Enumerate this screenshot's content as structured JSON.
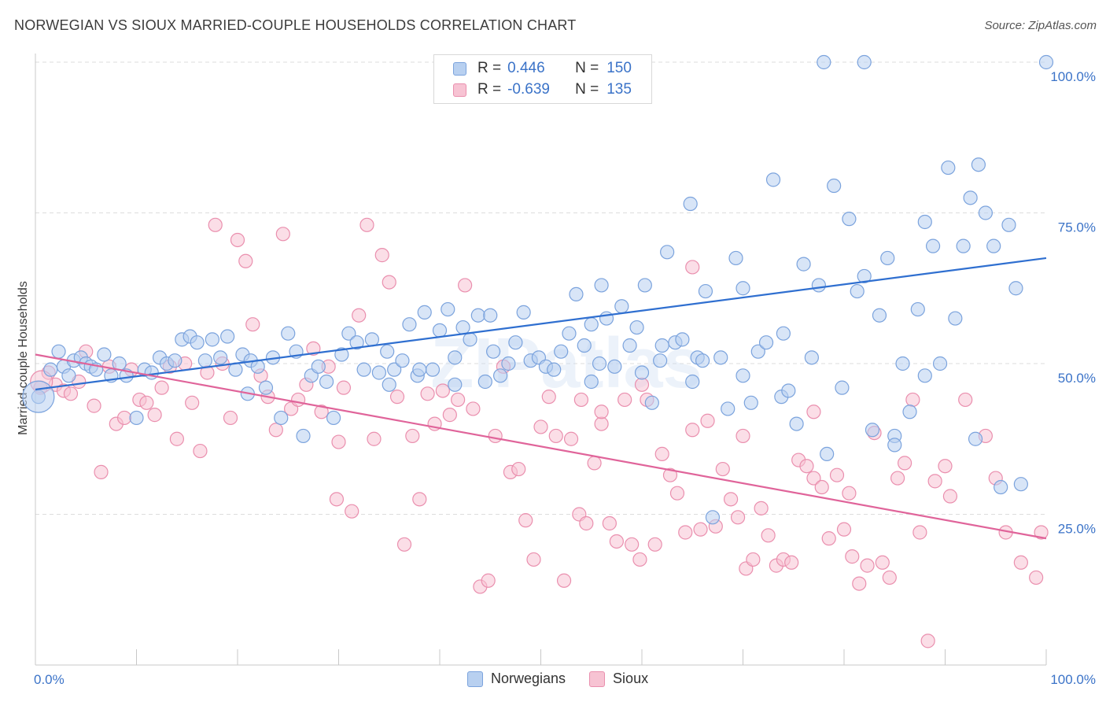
{
  "title": "NORWEGIAN VS SIOUX MARRIED-COUPLE HOUSEHOLDS CORRELATION CHART",
  "source": "Source: ZipAtlas.com",
  "watermark": "ZIPatlas",
  "legend": {
    "rows": [
      {
        "r_label": "R =",
        "r_value": "0.446",
        "n_label": "N =",
        "n_value": "150"
      },
      {
        "r_label": "R =",
        "r_value": "-0.639",
        "n_label": "N =",
        "n_value": "135"
      }
    ]
  },
  "bottom_legend": [
    "Norwegians",
    "Sioux"
  ],
  "colors": {
    "norwegian_fill": "#b8d0f0",
    "norwegian_stroke": "#7ba3dd",
    "norwegian_line": "#2f6fd0",
    "sioux_fill": "#f7c3d3",
    "sioux_stroke": "#ea8fae",
    "sioux_line": "#e0649a",
    "tick_label": "#3b73c8",
    "grid": "#dddddd"
  },
  "chart_data": {
    "type": "scatter",
    "title": "NORWEGIAN VS SIOUX MARRIED-COUPLE HOUSEHOLDS CORRELATION CHART",
    "xlabel": "",
    "ylabel": "Married-couple Households",
    "xlim": [
      0,
      100
    ],
    "ylim": [
      0,
      100
    ],
    "x_tick_labels": [
      "0.0%",
      "100.0%"
    ],
    "y_tick_labels": [
      "25.0%",
      "50.0%",
      "75.0%",
      "100.0%"
    ],
    "y_ticks": [
      25,
      50,
      75,
      100
    ],
    "grid": true,
    "legend_position": "top-center",
    "series": [
      {
        "name": "Norwegians",
        "R": 0.446,
        "N": 150,
        "trend": {
          "x": [
            0,
            100
          ],
          "y": [
            45.7,
            67.5
          ]
        },
        "points": [
          [
            0.3,
            44.5
          ],
          [
            1.5,
            49.0
          ],
          [
            2.3,
            52.0
          ],
          [
            2.8,
            49.5
          ],
          [
            3.3,
            48.0
          ],
          [
            3.8,
            50.5
          ],
          [
            4.5,
            51.0
          ],
          [
            5.0,
            50.0
          ],
          [
            5.5,
            49.5
          ],
          [
            6.0,
            49.0
          ],
          [
            6.8,
            51.5
          ],
          [
            7.5,
            48.0
          ],
          [
            8.3,
            50.0
          ],
          [
            9.0,
            48.0
          ],
          [
            10.0,
            41.0
          ],
          [
            10.8,
            49.0
          ],
          [
            11.5,
            48.5
          ],
          [
            12.3,
            51.0
          ],
          [
            13.0,
            50.0
          ],
          [
            13.8,
            50.5
          ],
          [
            14.5,
            54.0
          ],
          [
            15.3,
            54.5
          ],
          [
            16.0,
            53.5
          ],
          [
            16.8,
            50.5
          ],
          [
            17.5,
            54.0
          ],
          [
            18.3,
            51.0
          ],
          [
            19.0,
            54.5
          ],
          [
            19.8,
            49.0
          ],
          [
            20.5,
            51.5
          ],
          [
            21.3,
            50.5
          ],
          [
            22.0,
            49.5
          ],
          [
            22.8,
            46.0
          ],
          [
            23.5,
            51.0
          ],
          [
            24.3,
            41.0
          ],
          [
            25.0,
            55.0
          ],
          [
            25.8,
            52.0
          ],
          [
            26.5,
            38.0
          ],
          [
            27.3,
            48.0
          ],
          [
            28.0,
            49.5
          ],
          [
            28.8,
            47.0
          ],
          [
            29.5,
            41.0
          ],
          [
            30.3,
            51.5
          ],
          [
            31.0,
            55.0
          ],
          [
            31.8,
            53.5
          ],
          [
            32.5,
            49.0
          ],
          [
            33.3,
            54.0
          ],
          [
            34.0,
            48.5
          ],
          [
            34.8,
            52.0
          ],
          [
            35.5,
            49.0
          ],
          [
            36.3,
            50.5
          ],
          [
            37.0,
            56.5
          ],
          [
            37.8,
            48.0
          ],
          [
            38.5,
            58.5
          ],
          [
            39.3,
            49.0
          ],
          [
            40.0,
            55.5
          ],
          [
            40.8,
            59.0
          ],
          [
            41.5,
            51.0
          ],
          [
            42.3,
            56.0
          ],
          [
            43.0,
            54.0
          ],
          [
            43.8,
            58.0
          ],
          [
            44.5,
            47.0
          ],
          [
            45.3,
            52.0
          ],
          [
            46.0,
            48.0
          ],
          [
            46.8,
            50.0
          ],
          [
            47.5,
            53.5
          ],
          [
            48.3,
            58.5
          ],
          [
            49.0,
            50.5
          ],
          [
            49.8,
            51.0
          ],
          [
            50.5,
            49.5
          ],
          [
            51.3,
            49.0
          ],
          [
            52.0,
            52.0
          ],
          [
            52.8,
            55.0
          ],
          [
            53.5,
            61.5
          ],
          [
            54.3,
            53.0
          ],
          [
            55.0,
            56.5
          ],
          [
            55.8,
            50.0
          ],
          [
            56.5,
            57.5
          ],
          [
            57.3,
            49.5
          ],
          [
            58.0,
            59.5
          ],
          [
            58.8,
            53.0
          ],
          [
            59.5,
            56.0
          ],
          [
            60.3,
            63.0
          ],
          [
            61.0,
            43.5
          ],
          [
            61.8,
            50.5
          ],
          [
            62.5,
            68.5
          ],
          [
            63.3,
            53.5
          ],
          [
            64.0,
            54.0
          ],
          [
            64.8,
            76.5
          ],
          [
            65.5,
            51.0
          ],
          [
            66.3,
            62.0
          ],
          [
            67.0,
            24.5
          ],
          [
            67.8,
            51.0
          ],
          [
            68.5,
            42.5
          ],
          [
            69.3,
            67.5
          ],
          [
            70.0,
            62.5
          ],
          [
            70.8,
            43.5
          ],
          [
            71.5,
            52.0
          ],
          [
            72.3,
            53.5
          ],
          [
            73.0,
            80.5
          ],
          [
            73.8,
            44.5
          ],
          [
            74.5,
            45.5
          ],
          [
            75.3,
            40.0
          ],
          [
            76.0,
            66.5
          ],
          [
            76.8,
            51.0
          ],
          [
            77.5,
            63.0
          ],
          [
            78.3,
            35.0
          ],
          [
            79.0,
            79.5
          ],
          [
            79.8,
            46.0
          ],
          [
            80.5,
            74.0
          ],
          [
            81.3,
            62.0
          ],
          [
            82.0,
            64.5
          ],
          [
            82.8,
            39.0
          ],
          [
            83.5,
            58.0
          ],
          [
            84.3,
            67.5
          ],
          [
            85.0,
            38.0
          ],
          [
            85.8,
            50.0
          ],
          [
            86.5,
            42.0
          ],
          [
            87.3,
            59.0
          ],
          [
            88.0,
            73.5
          ],
          [
            88.8,
            69.5
          ],
          [
            89.5,
            50.0
          ],
          [
            90.3,
            82.5
          ],
          [
            91.0,
            57.5
          ],
          [
            91.8,
            69.5
          ],
          [
            92.5,
            77.5
          ],
          [
            93.3,
            83.0
          ],
          [
            94.0,
            75.0
          ],
          [
            94.8,
            69.5
          ],
          [
            95.5,
            29.5
          ],
          [
            96.3,
            73.0
          ],
          [
            97.0,
            62.5
          ],
          [
            78.0,
            100.0
          ],
          [
            82.0,
            100.0
          ],
          [
            100.0,
            100.0
          ],
          [
            35.0,
            46.5
          ],
          [
            38.0,
            49.0
          ],
          [
            45.0,
            58.0
          ],
          [
            56.0,
            63.0
          ],
          [
            60.0,
            48.5
          ],
          [
            62.0,
            53.0
          ],
          [
            66.0,
            50.5
          ],
          [
            70.0,
            48.0
          ],
          [
            74.0,
            55.0
          ],
          [
            85.0,
            36.5
          ],
          [
            88.0,
            48.0
          ],
          [
            93.0,
            37.5
          ],
          [
            97.5,
            30.0
          ],
          [
            65.0,
            47.0
          ],
          [
            21.0,
            45.0
          ],
          [
            41.5,
            46.5
          ],
          [
            55.0,
            47.0
          ]
        ]
      },
      {
        "name": "Sioux",
        "R": -0.639,
        "N": 135,
        "trend": {
          "x": [
            0,
            100
          ],
          "y": [
            51.5,
            21.0
          ]
        },
        "points": [
          [
            0.5,
            46.0
          ],
          [
            1.3,
            48.5
          ],
          [
            2.0,
            46.5
          ],
          [
            2.8,
            45.5
          ],
          [
            3.5,
            45.0
          ],
          [
            4.3,
            47.0
          ],
          [
            5.0,
            52.0
          ],
          [
            5.8,
            43.0
          ],
          [
            6.5,
            32.0
          ],
          [
            7.3,
            49.5
          ],
          [
            8.0,
            40.0
          ],
          [
            8.8,
            41.0
          ],
          [
            9.5,
            49.0
          ],
          [
            10.3,
            44.0
          ],
          [
            11.0,
            43.5
          ],
          [
            11.8,
            41.5
          ],
          [
            12.5,
            46.0
          ],
          [
            13.3,
            49.5
          ],
          [
            14.0,
            37.5
          ],
          [
            14.8,
            50.0
          ],
          [
            15.5,
            43.5
          ],
          [
            16.3,
            35.5
          ],
          [
            17.0,
            48.5
          ],
          [
            17.8,
            73.0
          ],
          [
            18.5,
            50.0
          ],
          [
            19.3,
            41.0
          ],
          [
            20.0,
            70.5
          ],
          [
            20.8,
            67.0
          ],
          [
            21.5,
            56.5
          ],
          [
            22.3,
            48.0
          ],
          [
            23.0,
            44.5
          ],
          [
            23.8,
            39.0
          ],
          [
            24.5,
            71.5
          ],
          [
            25.3,
            42.5
          ],
          [
            26.0,
            44.0
          ],
          [
            26.8,
            46.5
          ],
          [
            27.5,
            52.5
          ],
          [
            28.3,
            42.0
          ],
          [
            29.0,
            49.5
          ],
          [
            29.8,
            27.5
          ],
          [
            30.5,
            46.0
          ],
          [
            31.3,
            25.5
          ],
          [
            32.0,
            58.0
          ],
          [
            32.8,
            73.0
          ],
          [
            33.5,
            37.5
          ],
          [
            34.3,
            68.0
          ],
          [
            35.0,
            63.5
          ],
          [
            35.8,
            44.5
          ],
          [
            36.5,
            20.0
          ],
          [
            37.3,
            38.0
          ],
          [
            38.0,
            27.5
          ],
          [
            38.8,
            45.0
          ],
          [
            39.5,
            40.0
          ],
          [
            40.3,
            45.5
          ],
          [
            41.0,
            41.5
          ],
          [
            41.8,
            44.0
          ],
          [
            42.5,
            63.0
          ],
          [
            43.3,
            42.5
          ],
          [
            44.0,
            13.0
          ],
          [
            44.8,
            14.0
          ],
          [
            45.5,
            38.0
          ],
          [
            46.3,
            49.5
          ],
          [
            47.0,
            32.0
          ],
          [
            47.8,
            32.5
          ],
          [
            48.5,
            24.0
          ],
          [
            49.3,
            17.5
          ],
          [
            50.0,
            39.5
          ],
          [
            50.8,
            44.5
          ],
          [
            51.5,
            38.0
          ],
          [
            52.3,
            14.0
          ],
          [
            53.0,
            37.5
          ],
          [
            53.8,
            25.0
          ],
          [
            54.5,
            23.5
          ],
          [
            55.3,
            33.5
          ],
          [
            56.0,
            40.0
          ],
          [
            56.8,
            23.5
          ],
          [
            57.5,
            20.5
          ],
          [
            58.3,
            44.0
          ],
          [
            59.0,
            20.0
          ],
          [
            59.8,
            17.5
          ],
          [
            60.5,
            44.0
          ],
          [
            61.3,
            20.0
          ],
          [
            62.0,
            35.0
          ],
          [
            62.8,
            31.5
          ],
          [
            63.5,
            28.5
          ],
          [
            64.3,
            22.0
          ],
          [
            65.0,
            39.0
          ],
          [
            65.8,
            22.5
          ],
          [
            66.5,
            40.5
          ],
          [
            67.3,
            23.0
          ],
          [
            68.0,
            32.5
          ],
          [
            68.8,
            27.5
          ],
          [
            69.5,
            24.5
          ],
          [
            70.3,
            16.0
          ],
          [
            71.0,
            17.5
          ],
          [
            71.8,
            26.0
          ],
          [
            72.5,
            21.5
          ],
          [
            73.3,
            16.5
          ],
          [
            74.0,
            17.5
          ],
          [
            74.8,
            17.0
          ],
          [
            75.5,
            34.0
          ],
          [
            76.3,
            33.0
          ],
          [
            77.0,
            31.0
          ],
          [
            77.8,
            29.5
          ],
          [
            78.5,
            21.0
          ],
          [
            79.3,
            31.5
          ],
          [
            80.0,
            22.5
          ],
          [
            80.8,
            18.0
          ],
          [
            81.5,
            13.5
          ],
          [
            82.3,
            16.5
          ],
          [
            83.0,
            38.5
          ],
          [
            83.8,
            17.0
          ],
          [
            84.5,
            14.5
          ],
          [
            85.3,
            31.0
          ],
          [
            86.0,
            33.5
          ],
          [
            86.8,
            44.0
          ],
          [
            87.5,
            22.0
          ],
          [
            88.3,
            4.0
          ],
          [
            89.0,
            30.5
          ],
          [
            90.5,
            28.0
          ],
          [
            92.0,
            44.0
          ],
          [
            94.0,
            38.0
          ],
          [
            96.0,
            22.0
          ],
          [
            97.5,
            17.0
          ],
          [
            99.0,
            14.5
          ],
          [
            99.5,
            22.0
          ],
          [
            65.0,
            66.0
          ],
          [
            60.0,
            46.5
          ],
          [
            54.0,
            44.0
          ],
          [
            56.0,
            42.0
          ],
          [
            70.0,
            38.0
          ],
          [
            80.5,
            28.5
          ],
          [
            90.0,
            33.0
          ],
          [
            95.0,
            31.0
          ],
          [
            77.0,
            42.0
          ],
          [
            30.0,
            37.0
          ]
        ]
      }
    ]
  }
}
